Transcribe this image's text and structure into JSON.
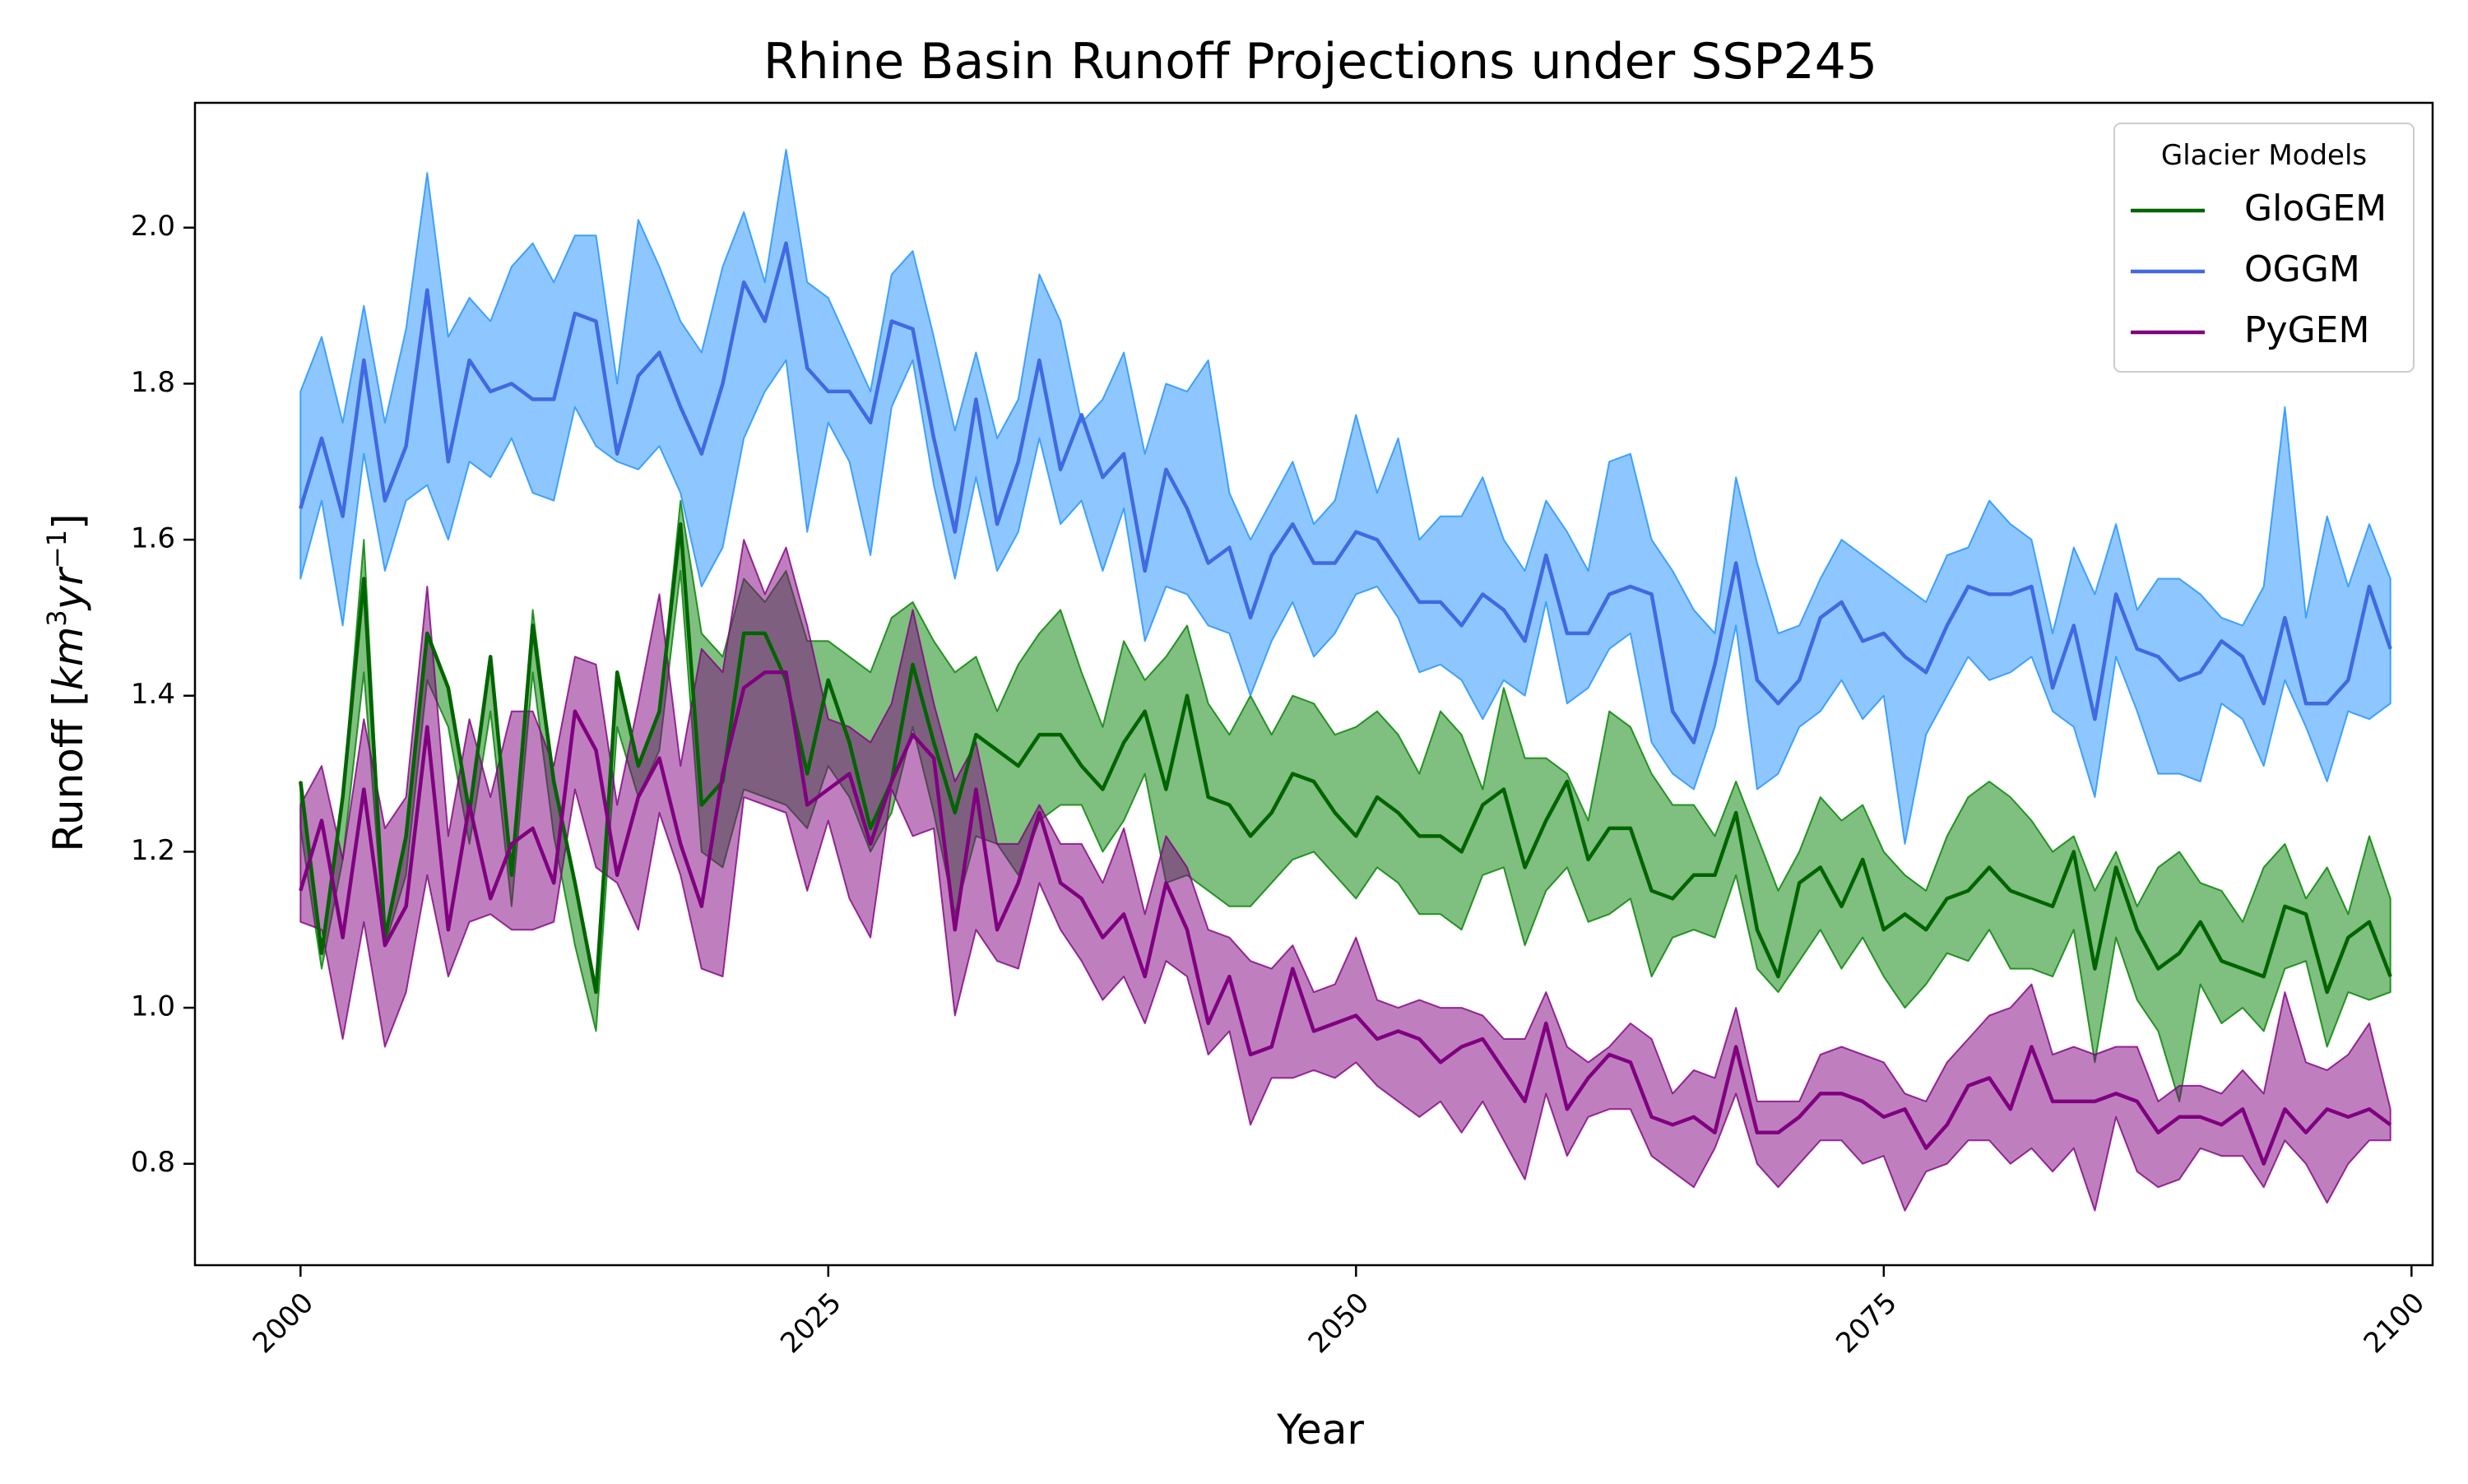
{
  "chart_data": {
    "type": "line",
    "title": "Rhine Basin Runoff Projections under SSP245",
    "xlabel": "Year",
    "ylabel_main": "Runoff [",
    "ylabel_unit_base": "km",
    "ylabel_unit_sup1": "3",
    "ylabel_unit_mid": "yr",
    "ylabel_unit_sup2": "−1",
    "ylabel_close": "]",
    "xlim": [
      1995,
      2101
    ],
    "ylim": [
      0.67,
      2.16
    ],
    "xticks": [
      2000,
      2025,
      2050,
      2075,
      2100
    ],
    "yticks": [
      0.8,
      1.0,
      1.2,
      1.4,
      1.6,
      1.8,
      2.0
    ],
    "xtick_labels": [
      "2000",
      "2025",
      "2050",
      "2075",
      "2100"
    ],
    "ytick_labels": [
      "0.8",
      "1.0",
      "1.2",
      "1.4",
      "1.6",
      "1.8",
      "2.0"
    ],
    "legend": {
      "title": "Glacier Models",
      "placement": "top-right"
    },
    "x": [
      2000,
      2001,
      2002,
      2003,
      2004,
      2005,
      2006,
      2007,
      2008,
      2009,
      2010,
      2011,
      2012,
      2013,
      2014,
      2015,
      2016,
      2017,
      2018,
      2019,
      2020,
      2021,
      2022,
      2023,
      2024,
      2025,
      2026,
      2027,
      2028,
      2029,
      2030,
      2031,
      2032,
      2033,
      2034,
      2035,
      2036,
      2037,
      2038,
      2039,
      2040,
      2041,
      2042,
      2043,
      2044,
      2045,
      2046,
      2047,
      2048,
      2049,
      2050,
      2051,
      2052,
      2053,
      2054,
      2055,
      2056,
      2057,
      2058,
      2059,
      2060,
      2061,
      2062,
      2063,
      2064,
      2065,
      2066,
      2067,
      2068,
      2069,
      2070,
      2071,
      2072,
      2073,
      2074,
      2075,
      2076,
      2077,
      2078,
      2079,
      2080,
      2081,
      2082,
      2083,
      2084,
      2085,
      2086,
      2087,
      2088,
      2089,
      2090,
      2091,
      2092,
      2093,
      2094,
      2095,
      2096,
      2097,
      2098,
      2099
    ],
    "series": [
      {
        "name": "GloGEM",
        "color": "#006400",
        "fill": "#008000",
        "fill_opacity": 0.5,
        "mean": [
          1.29,
          1.07,
          1.27,
          1.55,
          1.09,
          1.22,
          1.48,
          1.41,
          1.25,
          1.45,
          1.17,
          1.49,
          1.29,
          1.16,
          1.02,
          1.43,
          1.31,
          1.38,
          1.62,
          1.26,
          1.29,
          1.48,
          1.48,
          1.42,
          1.3,
          1.42,
          1.34,
          1.23,
          1.29,
          1.44,
          1.34,
          1.25,
          1.35,
          1.33,
          1.31,
          1.35,
          1.35,
          1.31,
          1.28,
          1.34,
          1.38,
          1.28,
          1.4,
          1.27,
          1.26,
          1.22,
          1.25,
          1.3,
          1.29,
          1.25,
          1.22,
          1.27,
          1.25,
          1.22,
          1.22,
          1.2,
          1.26,
          1.28,
          1.18,
          1.24,
          1.29,
          1.19,
          1.23,
          1.23,
          1.15,
          1.14,
          1.17,
          1.17,
          1.25,
          1.1,
          1.04,
          1.16,
          1.18,
          1.13,
          1.19,
          1.1,
          1.12,
          1.1,
          1.14,
          1.15,
          1.18,
          1.15,
          1.14,
          1.13,
          1.2,
          1.05,
          1.18,
          1.1,
          1.05,
          1.07,
          1.11,
          1.06,
          1.05,
          1.04,
          1.13,
          1.12,
          1.02,
          1.09,
          1.11,
          1.04
        ],
        "lower": [
          1.23,
          1.05,
          1.19,
          1.43,
          1.08,
          1.17,
          1.42,
          1.36,
          1.21,
          1.38,
          1.13,
          1.43,
          1.22,
          1.08,
          0.97,
          1.36,
          1.27,
          1.33,
          1.56,
          1.2,
          1.18,
          1.28,
          1.27,
          1.26,
          1.23,
          1.31,
          1.27,
          1.2,
          1.25,
          1.36,
          1.25,
          1.12,
          1.22,
          1.21,
          1.17,
          1.24,
          1.26,
          1.26,
          1.2,
          1.24,
          1.3,
          1.16,
          1.17,
          1.15,
          1.13,
          1.13,
          1.16,
          1.19,
          1.2,
          1.17,
          1.14,
          1.18,
          1.16,
          1.12,
          1.12,
          1.1,
          1.17,
          1.18,
          1.08,
          1.15,
          1.18,
          1.11,
          1.12,
          1.14,
          1.04,
          1.09,
          1.1,
          1.09,
          1.17,
          1.05,
          1.02,
          1.06,
          1.1,
          1.05,
          1.09,
          1.04,
          1.0,
          1.03,
          1.07,
          1.06,
          1.1,
          1.05,
          1.05,
          1.04,
          1.1,
          0.93,
          1.09,
          1.01,
          0.97,
          0.88,
          1.03,
          0.98,
          1.0,
          0.97,
          1.05,
          1.06,
          0.95,
          1.02,
          1.01,
          1.02
        ],
        "upper": [
          1.29,
          1.07,
          1.27,
          1.6,
          1.09,
          1.22,
          1.48,
          1.41,
          1.25,
          1.45,
          1.17,
          1.51,
          1.29,
          1.16,
          1.02,
          1.43,
          1.31,
          1.38,
          1.65,
          1.48,
          1.45,
          1.55,
          1.52,
          1.56,
          1.47,
          1.47,
          1.45,
          1.43,
          1.5,
          1.52,
          1.47,
          1.43,
          1.45,
          1.38,
          1.44,
          1.48,
          1.51,
          1.43,
          1.36,
          1.47,
          1.42,
          1.45,
          1.49,
          1.39,
          1.35,
          1.4,
          1.35,
          1.4,
          1.39,
          1.35,
          1.36,
          1.38,
          1.35,
          1.3,
          1.38,
          1.35,
          1.28,
          1.41,
          1.32,
          1.32,
          1.3,
          1.24,
          1.38,
          1.36,
          1.3,
          1.26,
          1.26,
          1.22,
          1.29,
          1.22,
          1.15,
          1.2,
          1.27,
          1.24,
          1.26,
          1.2,
          1.17,
          1.15,
          1.22,
          1.27,
          1.29,
          1.27,
          1.24,
          1.2,
          1.22,
          1.15,
          1.2,
          1.13,
          1.18,
          1.2,
          1.16,
          1.15,
          1.11,
          1.18,
          1.21,
          1.14,
          1.18,
          1.12,
          1.22,
          1.14
        ]
      },
      {
        "name": "OGGM",
        "color": "#4169e1",
        "fill": "#1e90ff",
        "fill_opacity": 0.5,
        "mean": [
          1.64,
          1.73,
          1.63,
          1.83,
          1.65,
          1.72,
          1.92,
          1.7,
          1.83,
          1.79,
          1.8,
          1.78,
          1.78,
          1.89,
          1.88,
          1.71,
          1.81,
          1.84,
          1.77,
          1.71,
          1.8,
          1.93,
          1.88,
          1.98,
          1.82,
          1.79,
          1.79,
          1.75,
          1.88,
          1.87,
          1.73,
          1.61,
          1.78,
          1.62,
          1.7,
          1.83,
          1.69,
          1.76,
          1.68,
          1.71,
          1.56,
          1.69,
          1.64,
          1.57,
          1.59,
          1.5,
          1.58,
          1.62,
          1.57,
          1.57,
          1.61,
          1.6,
          1.56,
          1.52,
          1.52,
          1.49,
          1.53,
          1.51,
          1.47,
          1.58,
          1.48,
          1.48,
          1.53,
          1.54,
          1.53,
          1.38,
          1.34,
          1.44,
          1.57,
          1.42,
          1.39,
          1.42,
          1.5,
          1.52,
          1.47,
          1.48,
          1.45,
          1.43,
          1.49,
          1.54,
          1.53,
          1.53,
          1.54,
          1.41,
          1.49,
          1.37,
          1.53,
          1.46,
          1.45,
          1.42,
          1.43,
          1.47,
          1.45,
          1.39,
          1.5,
          1.39,
          1.39,
          1.42,
          1.54,
          1.46
        ],
        "lower": [
          1.55,
          1.65,
          1.49,
          1.71,
          1.56,
          1.65,
          1.67,
          1.6,
          1.7,
          1.68,
          1.73,
          1.66,
          1.65,
          1.77,
          1.72,
          1.7,
          1.69,
          1.72,
          1.66,
          1.54,
          1.59,
          1.73,
          1.79,
          1.83,
          1.61,
          1.75,
          1.7,
          1.58,
          1.77,
          1.83,
          1.67,
          1.55,
          1.68,
          1.56,
          1.61,
          1.73,
          1.62,
          1.65,
          1.56,
          1.64,
          1.47,
          1.54,
          1.53,
          1.49,
          1.48,
          1.4,
          1.47,
          1.52,
          1.45,
          1.48,
          1.53,
          1.54,
          1.5,
          1.43,
          1.44,
          1.42,
          1.37,
          1.42,
          1.4,
          1.52,
          1.39,
          1.41,
          1.46,
          1.48,
          1.34,
          1.3,
          1.28,
          1.36,
          1.49,
          1.28,
          1.3,
          1.36,
          1.38,
          1.42,
          1.37,
          1.4,
          1.21,
          1.35,
          1.4,
          1.45,
          1.42,
          1.43,
          1.45,
          1.38,
          1.36,
          1.27,
          1.45,
          1.38,
          1.3,
          1.3,
          1.29,
          1.39,
          1.37,
          1.31,
          1.42,
          1.36,
          1.29,
          1.38,
          1.37,
          1.39
        ],
        "upper": [
          1.79,
          1.86,
          1.75,
          1.9,
          1.75,
          1.87,
          2.07,
          1.86,
          1.91,
          1.88,
          1.95,
          1.98,
          1.93,
          1.99,
          1.99,
          1.8,
          2.01,
          1.95,
          1.88,
          1.84,
          1.95,
          2.02,
          1.93,
          2.1,
          1.93,
          1.91,
          1.85,
          1.79,
          1.94,
          1.97,
          1.86,
          1.74,
          1.84,
          1.73,
          1.78,
          1.94,
          1.88,
          1.75,
          1.78,
          1.84,
          1.71,
          1.8,
          1.79,
          1.83,
          1.66,
          1.6,
          1.65,
          1.7,
          1.62,
          1.65,
          1.76,
          1.66,
          1.73,
          1.6,
          1.63,
          1.63,
          1.68,
          1.6,
          1.56,
          1.65,
          1.61,
          1.56,
          1.7,
          1.71,
          1.6,
          1.56,
          1.51,
          1.48,
          1.68,
          1.57,
          1.48,
          1.49,
          1.55,
          1.6,
          1.58,
          1.56,
          1.54,
          1.52,
          1.58,
          1.59,
          1.65,
          1.62,
          1.6,
          1.48,
          1.59,
          1.53,
          1.62,
          1.51,
          1.55,
          1.55,
          1.53,
          1.5,
          1.49,
          1.54,
          1.77,
          1.5,
          1.63,
          1.54,
          1.62,
          1.55
        ]
      },
      {
        "name": "PyGEM",
        "color": "#800080",
        "fill": "#800080",
        "fill_opacity": 0.5,
        "mean": [
          1.15,
          1.24,
          1.09,
          1.28,
          1.08,
          1.13,
          1.36,
          1.1,
          1.26,
          1.14,
          1.21,
          1.23,
          1.16,
          1.38,
          1.33,
          1.17,
          1.27,
          1.32,
          1.21,
          1.13,
          1.3,
          1.41,
          1.43,
          1.43,
          1.26,
          1.28,
          1.3,
          1.21,
          1.29,
          1.35,
          1.32,
          1.1,
          1.28,
          1.1,
          1.16,
          1.25,
          1.16,
          1.14,
          1.09,
          1.12,
          1.04,
          1.16,
          1.1,
          0.98,
          1.04,
          0.94,
          0.95,
          1.05,
          0.97,
          0.98,
          0.99,
          0.96,
          0.97,
          0.96,
          0.93,
          0.95,
          0.96,
          0.92,
          0.88,
          0.98,
          0.87,
          0.91,
          0.94,
          0.93,
          0.86,
          0.85,
          0.86,
          0.84,
          0.95,
          0.84,
          0.84,
          0.86,
          0.89,
          0.89,
          0.88,
          0.86,
          0.87,
          0.82,
          0.85,
          0.9,
          0.91,
          0.87,
          0.95,
          0.88,
          0.88,
          0.88,
          0.89,
          0.88,
          0.84,
          0.86,
          0.86,
          0.85,
          0.87,
          0.8,
          0.87,
          0.84,
          0.87,
          0.86,
          0.87,
          0.85
        ],
        "lower": [
          1.11,
          1.1,
          0.96,
          1.11,
          0.95,
          1.02,
          1.17,
          1.04,
          1.11,
          1.12,
          1.1,
          1.1,
          1.11,
          1.28,
          1.18,
          1.16,
          1.1,
          1.25,
          1.17,
          1.05,
          1.04,
          1.27,
          1.26,
          1.25,
          1.15,
          1.24,
          1.14,
          1.09,
          1.28,
          1.22,
          1.23,
          0.99,
          1.1,
          1.06,
          1.05,
          1.16,
          1.1,
          1.06,
          1.01,
          1.04,
          0.98,
          1.06,
          1.04,
          0.94,
          0.97,
          0.85,
          0.91,
          0.91,
          0.92,
          0.91,
          0.93,
          0.9,
          0.88,
          0.86,
          0.88,
          0.84,
          0.88,
          0.83,
          0.78,
          0.89,
          0.81,
          0.86,
          0.87,
          0.87,
          0.81,
          0.79,
          0.77,
          0.82,
          0.89,
          0.8,
          0.77,
          0.8,
          0.83,
          0.83,
          0.8,
          0.81,
          0.74,
          0.79,
          0.8,
          0.83,
          0.83,
          0.8,
          0.82,
          0.79,
          0.82,
          0.74,
          0.86,
          0.79,
          0.77,
          0.78,
          0.82,
          0.81,
          0.81,
          0.77,
          0.83,
          0.8,
          0.75,
          0.8,
          0.83,
          0.83
        ],
        "upper": [
          1.26,
          1.31,
          1.19,
          1.37,
          1.23,
          1.27,
          1.54,
          1.22,
          1.37,
          1.27,
          1.38,
          1.38,
          1.31,
          1.45,
          1.44,
          1.26,
          1.39,
          1.53,
          1.31,
          1.46,
          1.43,
          1.6,
          1.53,
          1.59,
          1.49,
          1.37,
          1.36,
          1.34,
          1.39,
          1.51,
          1.39,
          1.29,
          1.34,
          1.21,
          1.21,
          1.26,
          1.21,
          1.21,
          1.16,
          1.23,
          1.12,
          1.22,
          1.18,
          1.1,
          1.09,
          1.06,
          1.05,
          1.08,
          1.02,
          1.03,
          1.09,
          1.01,
          1.0,
          1.01,
          1.0,
          1.0,
          0.99,
          0.96,
          0.96,
          1.02,
          0.95,
          0.93,
          0.95,
          0.98,
          0.96,
          0.89,
          0.92,
          0.91,
          1.0,
          0.88,
          0.88,
          0.88,
          0.94,
          0.95,
          0.94,
          0.93,
          0.89,
          0.88,
          0.93,
          0.96,
          0.99,
          1.0,
          1.03,
          0.94,
          0.95,
          0.94,
          0.95,
          0.95,
          0.88,
          0.9,
          0.9,
          0.89,
          0.92,
          0.89,
          1.02,
          0.93,
          0.92,
          0.94,
          0.98,
          0.87
        ]
      }
    ]
  }
}
